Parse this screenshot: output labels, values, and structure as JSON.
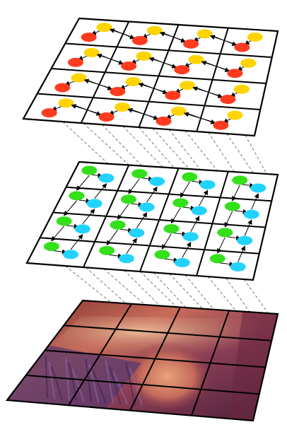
{
  "diagram": {
    "layers": [
      {
        "name": "top-grid",
        "rows": 4,
        "cols": 4,
        "dot_colors": [
          "#ffd400",
          "#ff3b1f"
        ],
        "link_color": "#000000",
        "grid_color": "#000000"
      },
      {
        "name": "middle-grid",
        "rows": 4,
        "cols": 4,
        "dot_colors": [
          "#33e01a",
          "#22d3ff"
        ],
        "link_color": "#000000",
        "grid_color": "#000000"
      },
      {
        "name": "image-grid",
        "rows": 4,
        "cols": 4,
        "content": "photo-texture",
        "grid_color": "#000000"
      }
    ],
    "connectors": {
      "style": "dashed",
      "color": "#777777"
    }
  }
}
